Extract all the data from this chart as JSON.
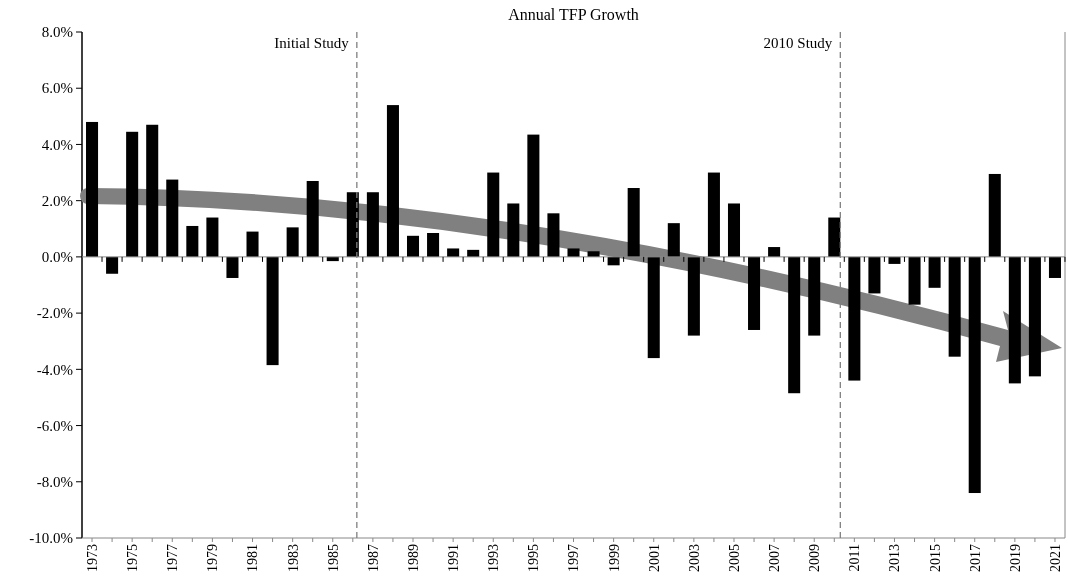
{
  "chart_data": {
    "type": "bar",
    "title": "Annual TFP Growth",
    "x": [
      1973,
      1974,
      1975,
      1976,
      1977,
      1978,
      1979,
      1980,
      1981,
      1982,
      1983,
      1984,
      1985,
      1986,
      1987,
      1988,
      1989,
      1990,
      1991,
      1992,
      1993,
      1994,
      1995,
      1996,
      1997,
      1998,
      1999,
      2000,
      2001,
      2002,
      2003,
      2004,
      2005,
      2006,
      2007,
      2008,
      2009,
      2010,
      2011,
      2012,
      2013,
      2014,
      2015,
      2016,
      2017,
      2018,
      2019,
      2020,
      2021
    ],
    "values": [
      4.8,
      -0.6,
      4.45,
      4.7,
      2.75,
      1.1,
      1.4,
      -0.75,
      0.9,
      -3.85,
      1.05,
      2.7,
      -0.15,
      2.3,
      2.3,
      5.4,
      0.75,
      0.85,
      0.3,
      0.25,
      3.0,
      1.9,
      4.35,
      1.55,
      0.3,
      0.2,
      -0.3,
      2.45,
      -3.6,
      1.2,
      -2.8,
      3.0,
      1.9,
      -2.6,
      0.35,
      -4.85,
      -2.8,
      1.4,
      -4.4,
      -1.3,
      -0.25,
      -1.7,
      -1.1,
      -3.55,
      -8.4,
      2.95,
      -4.5,
      -4.25,
      -0.75
    ],
    "color": "#000000",
    "xlim": [
      1972.5,
      2021.5
    ],
    "xticks": [
      1973,
      {
        "value": 1974,
        "label": null
      },
      1975,
      {
        "value": 1976,
        "label": null
      },
      1977,
      {
        "value": 1978,
        "label": null
      },
      1979,
      {
        "value": 1980,
        "label": null
      },
      1981,
      {
        "value": 1982,
        "label": null
      },
      1983,
      {
        "value": 1984,
        "label": null
      },
      1985,
      {
        "value": 1986,
        "label": null
      },
      1987,
      {
        "value": 1988,
        "label": null
      },
      1989,
      {
        "value": 1990,
        "label": null
      },
      1991,
      {
        "value": 1992,
        "label": null
      },
      1993,
      {
        "value": 1994,
        "label": null
      },
      1995,
      {
        "value": 1996,
        "label": null
      },
      1997,
      {
        "value": 1998,
        "label": null
      },
      1999,
      {
        "value": 2000,
        "label": null
      },
      2001,
      {
        "value": 2002,
        "label": null
      },
      2003,
      {
        "value": 2004,
        "label": null
      },
      2005,
      {
        "value": 2006,
        "label": null
      },
      2007,
      {
        "value": 2008,
        "label": null
      },
      2009,
      {
        "value": 2010,
        "label": null
      },
      2011,
      {
        "value": 2012,
        "label": null
      },
      2013,
      {
        "value": 2014,
        "label": null
      },
      2015,
      {
        "value": 2016,
        "label": null
      },
      2017,
      {
        "value": 2018,
        "label": null
      },
      2019,
      {
        "value": 2020,
        "label": null
      },
      2021
    ],
    "ylim": [
      -10,
      8
    ],
    "yticks": [
      {
        "value": -10,
        "label": "-10.0%"
      },
      {
        "value": -8,
        "label": "-8.0%"
      },
      {
        "value": -6,
        "label": "-6.0%"
      },
      {
        "value": -4,
        "label": "-4.0%"
      },
      {
        "value": -2,
        "label": "-2.0%"
      },
      {
        "value": 0,
        "label": "0.0%"
      },
      {
        "value": 2,
        "label": "2.0%"
      },
      {
        "value": 4,
        "label": "4.0%"
      },
      {
        "value": 6,
        "label": "6.0%"
      },
      {
        "value": 8,
        "label": "8.0%"
      }
    ],
    "ref_lines": [
      {
        "axis": "x",
        "value": 1986.2,
        "label": "Initial Study",
        "color": "#808080",
        "line_style": "dashed"
      },
      {
        "axis": "x",
        "value": 2010.3,
        "label": "2010 Study",
        "color": "#808080",
        "line_style": "dashed"
      }
    ]
  }
}
